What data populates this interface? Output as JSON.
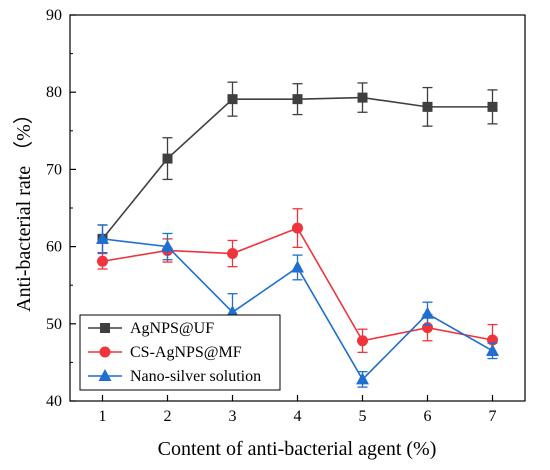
{
  "chart_data": {
    "type": "line",
    "title": "",
    "xlabel": "Content of anti-bacterial agent (%)",
    "ylabel": "Anti-bacterial rate （%）",
    "x": [
      1,
      2,
      3,
      4,
      5,
      6,
      7
    ],
    "xlim": [
      0.5,
      7.5
    ],
    "ylim": [
      40,
      90
    ],
    "xticks": [
      "1",
      "2",
      "3",
      "4",
      "5",
      "6",
      "7"
    ],
    "yticks": [
      "40",
      "50",
      "60",
      "70",
      "80",
      "90"
    ],
    "grid": false,
    "legend_position": "bottom-left",
    "series": [
      {
        "name": "AgNPS@UF",
        "color": "#3f3f3f",
        "marker": "square",
        "values": [
          61.0,
          71.4,
          79.1,
          79.1,
          79.3,
          78.1,
          78.1
        ],
        "errors": [
          1.8,
          2.7,
          2.2,
          2.0,
          1.9,
          2.5,
          2.2
        ]
      },
      {
        "name": "CS-AgNPS@MF",
        "color": "#f0343d",
        "marker": "circle",
        "values": [
          58.1,
          59.5,
          59.1,
          62.4,
          47.8,
          49.5,
          47.9
        ],
        "errors": [
          1.0,
          1.5,
          1.7,
          2.5,
          1.5,
          1.7,
          2.0
        ]
      },
      {
        "name": "Nano-silver solution",
        "color": "#1f6fd0",
        "marker": "triangle",
        "values": [
          61.0,
          60.0,
          51.5,
          57.3,
          42.8,
          51.3,
          46.5
        ],
        "errors": [
          1.8,
          1.7,
          2.4,
          1.6,
          1.0,
          1.5,
          1.0
        ]
      }
    ]
  }
}
